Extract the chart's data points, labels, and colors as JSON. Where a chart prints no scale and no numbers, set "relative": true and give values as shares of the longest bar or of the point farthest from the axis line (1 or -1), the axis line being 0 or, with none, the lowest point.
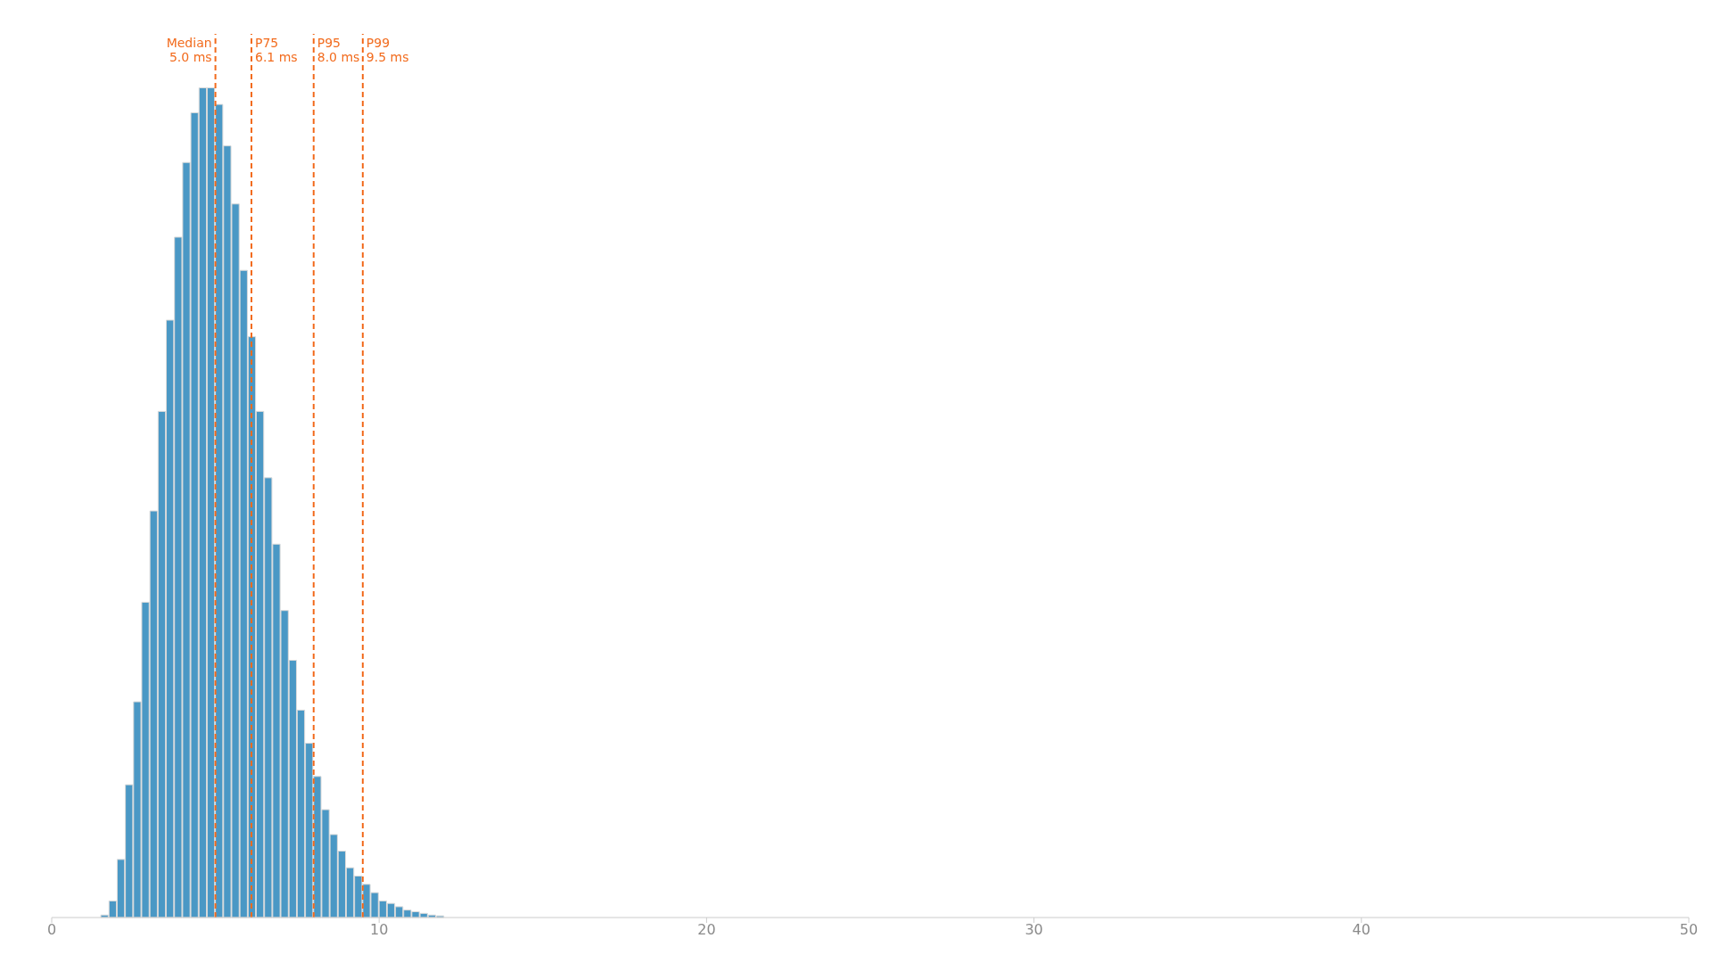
{
  "chart_data": {
    "type": "bar",
    "relative": true,
    "color": "#4a98c5",
    "x": [
      1.625,
      1.875,
      2.125,
      2.375,
      2.625,
      2.875,
      3.125,
      3.375,
      3.625,
      3.875,
      4.125,
      4.375,
      4.625,
      4.875,
      5.125,
      5.375,
      5.625,
      5.875,
      6.125,
      6.375,
      6.625,
      6.875,
      7.125,
      7.375,
      7.625,
      7.875,
      8.125,
      8.375,
      8.625,
      8.875,
      9.125,
      9.375,
      9.625,
      9.875,
      10.125,
      10.375,
      10.625,
      10.875,
      11.125,
      11.375,
      11.625,
      11.875
    ],
    "values": [
      0.003,
      0.02,
      0.07,
      0.16,
      0.26,
      0.38,
      0.49,
      0.61,
      0.72,
      0.82,
      0.91,
      0.97,
      1.0,
      1.0,
      0.98,
      0.93,
      0.86,
      0.78,
      0.7,
      0.61,
      0.53,
      0.45,
      0.37,
      0.31,
      0.25,
      0.21,
      0.17,
      0.13,
      0.1,
      0.08,
      0.06,
      0.05,
      0.04,
      0.03,
      0.02,
      0.017,
      0.013,
      0.009,
      0.007,
      0.005,
      0.003,
      0.002
    ],
    "xlim": [
      0,
      50
    ],
    "xticks": [
      0,
      10,
      20,
      30,
      40,
      50
    ],
    "grid": false,
    "legend": false,
    "ref_lines": [
      {
        "axis": "x",
        "value": 5.0,
        "label": "Median 5.0 ms",
        "color": "#f26b1d",
        "line_style": "dashed"
      },
      {
        "axis": "x",
        "value": 6.1,
        "label": "P75 6.1 ms",
        "color": "#f26b1d",
        "line_style": "dashed"
      },
      {
        "axis": "x",
        "value": 8.0,
        "label": "P95 8.0 ms",
        "color": "#f26b1d",
        "line_style": "dashed"
      },
      {
        "axis": "x",
        "value": 9.5,
        "label": "P99 9.5 ms",
        "color": "#f26b1d",
        "line_style": "dashed"
      }
    ]
  }
}
